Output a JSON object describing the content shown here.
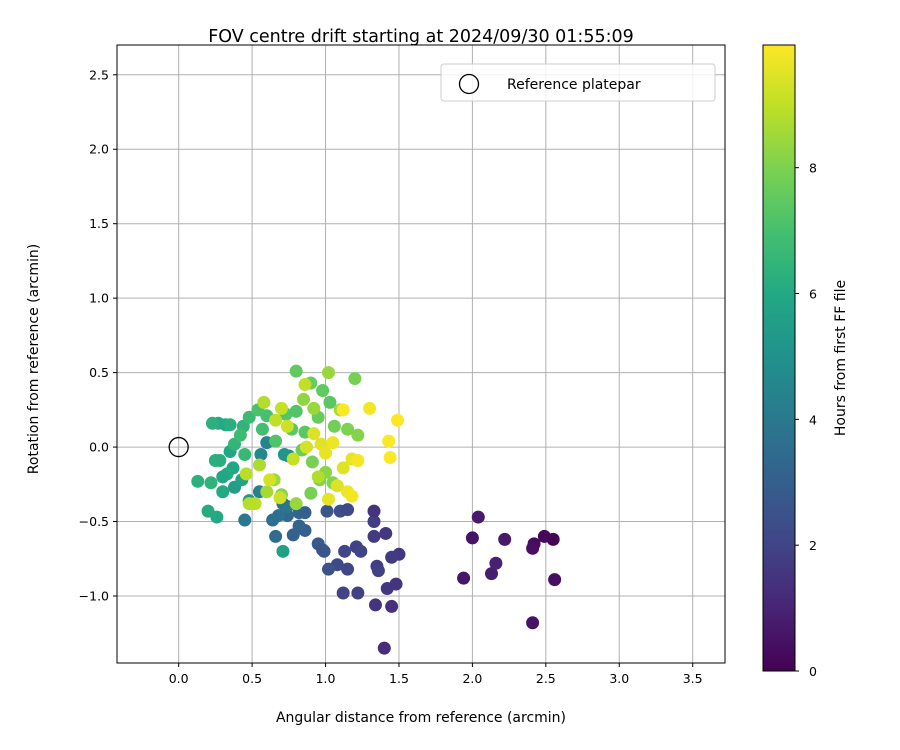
{
  "chart_data": {
    "type": "scatter",
    "title": "FOV centre drift starting at 2024/09/30 01:55:09",
    "xlabel": "Angular distance from reference (arcmin)",
    "ylabel": "Rotation from reference (arcmin)",
    "xlim": [
      -0.42,
      3.72
    ],
    "ylim": [
      -1.45,
      2.7
    ],
    "xticks": [
      0.0,
      0.5,
      1.0,
      1.5,
      2.0,
      2.5,
      3.0,
      3.5
    ],
    "xtick_labels": [
      "0.0",
      "0.5",
      "1.0",
      "1.5",
      "2.0",
      "2.5",
      "3.0",
      "3.5"
    ],
    "yticks": [
      -1.0,
      -0.5,
      0.0,
      0.5,
      1.0,
      1.5,
      2.0,
      2.5
    ],
    "ytick_labels": [
      "−1.0",
      "−0.5",
      "0.0",
      "0.5",
      "1.0",
      "1.5",
      "2.0",
      "2.5"
    ],
    "grid": true,
    "legend": {
      "placement": "upper-right",
      "entries": [
        "Reference platepar"
      ]
    },
    "reference_point": {
      "x": 0.0,
      "y": 0.0,
      "label": "Reference platepar"
    },
    "colorbar": {
      "label": "Hours from first FF file",
      "colormap": "viridis",
      "range": [
        0,
        9.95
      ],
      "ticks": [
        0,
        2,
        4,
        6,
        8
      ],
      "tick_labels": [
        "0",
        "2",
        "4",
        "6",
        "8"
      ]
    },
    "series": [
      {
        "columns": [
          "x",
          "y",
          "hours"
        ],
        "points": [
          [
            2.55,
            -0.62,
            0.1
          ],
          [
            2.49,
            -0.6,
            0.2
          ],
          [
            2.42,
            -0.65,
            0.3
          ],
          [
            2.41,
            -0.68,
            0.4
          ],
          [
            2.41,
            -1.18,
            0.5
          ],
          [
            2.56,
            -0.89,
            0.4
          ],
          [
            1.94,
            -0.88,
            0.6
          ],
          [
            2.0,
            -0.61,
            0.5
          ],
          [
            2.04,
            -0.47,
            0.7
          ],
          [
            2.13,
            -0.85,
            0.8
          ],
          [
            2.16,
            -0.78,
            0.9
          ],
          [
            2.22,
            -0.62,
            0.7
          ],
          [
            1.4,
            -1.35,
            1.3
          ],
          [
            1.45,
            -1.07,
            1.4
          ],
          [
            1.34,
            -1.06,
            1.5
          ],
          [
            1.42,
            -0.95,
            1.6
          ],
          [
            1.48,
            -0.92,
            1.5
          ],
          [
            1.5,
            -0.72,
            1.6
          ],
          [
            1.45,
            -0.74,
            1.7
          ],
          [
            1.35,
            -0.8,
            1.8
          ],
          [
            1.36,
            -0.83,
            1.9
          ],
          [
            1.41,
            -0.58,
            1.6
          ],
          [
            1.33,
            -0.6,
            1.7
          ],
          [
            1.33,
            -0.5,
            1.8
          ],
          [
            1.33,
            -0.43,
            1.5
          ],
          [
            1.21,
            -0.67,
            1.9
          ],
          [
            1.24,
            -0.7,
            2.0
          ],
          [
            1.13,
            -0.7,
            2.1
          ],
          [
            1.08,
            -0.79,
            2.2
          ],
          [
            1.15,
            -0.82,
            2.1
          ],
          [
            1.12,
            -0.98,
            2.0
          ],
          [
            1.22,
            -0.98,
            1.9
          ],
          [
            1.02,
            -0.82,
            2.5
          ],
          [
            0.99,
            -0.7,
            2.7
          ],
          [
            0.95,
            -0.65,
            2.8
          ],
          [
            0.98,
            -0.69,
            2.6
          ],
          [
            1.1,
            -0.43,
            2.4
          ],
          [
            1.15,
            -0.42,
            2.2
          ],
          [
            1.01,
            -0.43,
            2.6
          ],
          [
            0.86,
            -0.56,
            3.0
          ],
          [
            0.82,
            -0.53,
            3.2
          ],
          [
            0.78,
            -0.59,
            3.1
          ],
          [
            0.82,
            -0.44,
            3.3
          ],
          [
            0.86,
            -0.44,
            3.0
          ],
          [
            0.74,
            -0.46,
            3.4
          ],
          [
            0.66,
            -0.6,
            3.5
          ],
          [
            0.68,
            -0.46,
            3.7
          ],
          [
            0.64,
            -0.49,
            3.6
          ],
          [
            0.45,
            -0.49,
            4.0
          ],
          [
            0.71,
            -0.38,
            3.8
          ],
          [
            0.6,
            0.03,
            4.4
          ],
          [
            0.56,
            -0.05,
            4.6
          ],
          [
            0.74,
            -0.4,
            3.9
          ],
          [
            0.55,
            -0.3,
            4.3
          ],
          [
            0.75,
            -0.06,
            4.9
          ],
          [
            0.72,
            -0.05,
            5.1
          ],
          [
            0.48,
            -0.36,
            5.3
          ],
          [
            0.71,
            -0.7,
            5.6
          ],
          [
            0.38,
            -0.27,
            5.5
          ],
          [
            0.43,
            -0.22,
            5.7
          ],
          [
            0.37,
            -0.14,
            5.8
          ],
          [
            0.35,
            -0.03,
            5.9
          ],
          [
            0.3,
            -0.3,
            6.0
          ],
          [
            0.33,
            -0.18,
            6.1
          ],
          [
            0.3,
            -0.2,
            5.9
          ],
          [
            0.28,
            -0.09,
            6.2
          ],
          [
            0.26,
            -0.47,
            6.0
          ],
          [
            0.2,
            -0.43,
            6.1
          ],
          [
            0.13,
            -0.23,
            6.3
          ],
          [
            0.22,
            -0.24,
            6.4
          ],
          [
            0.25,
            -0.09,
            6.2
          ],
          [
            0.27,
            0.16,
            6.1
          ],
          [
            0.23,
            0.16,
            6.3
          ],
          [
            0.32,
            0.15,
            6.0
          ],
          [
            0.35,
            0.15,
            6.2
          ],
          [
            0.44,
            0.14,
            6.4
          ],
          [
            0.38,
            0.02,
            6.5
          ],
          [
            0.45,
            -0.05,
            6.6
          ],
          [
            0.48,
            0.2,
            6.7
          ],
          [
            0.42,
            0.08,
            6.8
          ],
          [
            0.57,
            0.12,
            6.9
          ],
          [
            0.6,
            0.21,
            7.0
          ],
          [
            0.54,
            0.25,
            7.1
          ],
          [
            0.66,
            0.04,
            7.2
          ],
          [
            0.73,
            0.22,
            7.3
          ],
          [
            0.8,
            0.24,
            7.2
          ],
          [
            0.86,
            0.1,
            7.4
          ],
          [
            0.8,
            0.51,
            7.5
          ],
          [
            0.9,
            0.43,
            7.6
          ],
          [
            0.98,
            0.38,
            7.5
          ],
          [
            1.03,
            0.3,
            7.4
          ],
          [
            0.95,
            0.2,
            7.6
          ],
          [
            1.06,
            0.14,
            7.8
          ],
          [
            1.2,
            0.46,
            7.9
          ],
          [
            1.15,
            0.12,
            8.0
          ],
          [
            1.22,
            0.08,
            8.1
          ],
          [
            0.77,
            0.12,
            7.4
          ],
          [
            0.84,
            -0.02,
            7.7
          ],
          [
            0.91,
            -0.1,
            7.9
          ],
          [
            0.96,
            -0.22,
            8.0
          ],
          [
            1.0,
            -0.17,
            8.2
          ],
          [
            1.05,
            -0.24,
            8.1
          ],
          [
            0.9,
            -0.31,
            7.9
          ],
          [
            0.85,
            0.32,
            8.3
          ],
          [
            0.92,
            0.26,
            8.4
          ],
          [
            1.02,
            0.5,
            8.4
          ],
          [
            1.1,
            0.25,
            8.6
          ],
          [
            0.7,
            -0.32,
            8.2
          ],
          [
            0.8,
            -0.38,
            8.4
          ],
          [
            0.65,
            -0.22,
            8.5
          ],
          [
            0.6,
            -0.3,
            8.6
          ],
          [
            0.55,
            -0.12,
            8.7
          ],
          [
            0.48,
            -0.38,
            8.8
          ],
          [
            0.52,
            -0.38,
            8.9
          ],
          [
            0.46,
            -0.18,
            8.9
          ],
          [
            0.58,
            0.3,
            8.8
          ],
          [
            0.66,
            0.18,
            9.0
          ],
          [
            0.7,
            0.26,
            9.1
          ],
          [
            0.74,
            0.14,
            9.2
          ],
          [
            0.86,
            0.42,
            9.0
          ],
          [
            0.87,
            0.0,
            9.3
          ],
          [
            0.92,
            0.09,
            9.4
          ],
          [
            0.97,
            0.02,
            9.5
          ],
          [
            1.0,
            -0.04,
            9.6
          ],
          [
            1.05,
            0.03,
            9.7
          ],
          [
            1.12,
            -0.14,
            9.5
          ],
          [
            1.18,
            -0.08,
            9.6
          ],
          [
            1.22,
            -0.09,
            9.8
          ],
          [
            1.08,
            -0.26,
            9.4
          ],
          [
            1.15,
            -0.3,
            9.7
          ],
          [
            1.18,
            -0.33,
            9.8
          ],
          [
            1.02,
            -0.35,
            9.6
          ],
          [
            1.3,
            0.26,
            9.8
          ],
          [
            1.43,
            0.04,
            9.9
          ],
          [
            1.44,
            -0.07,
            9.9
          ],
          [
            1.49,
            0.18,
            9.95
          ],
          [
            1.12,
            0.25,
            9.9
          ],
          [
            0.62,
            -0.22,
            9.3
          ],
          [
            0.69,
            -0.34,
            9.2
          ],
          [
            0.78,
            -0.08,
            9.1
          ],
          [
            0.95,
            -0.2,
            8.8
          ]
        ]
      }
    ]
  }
}
